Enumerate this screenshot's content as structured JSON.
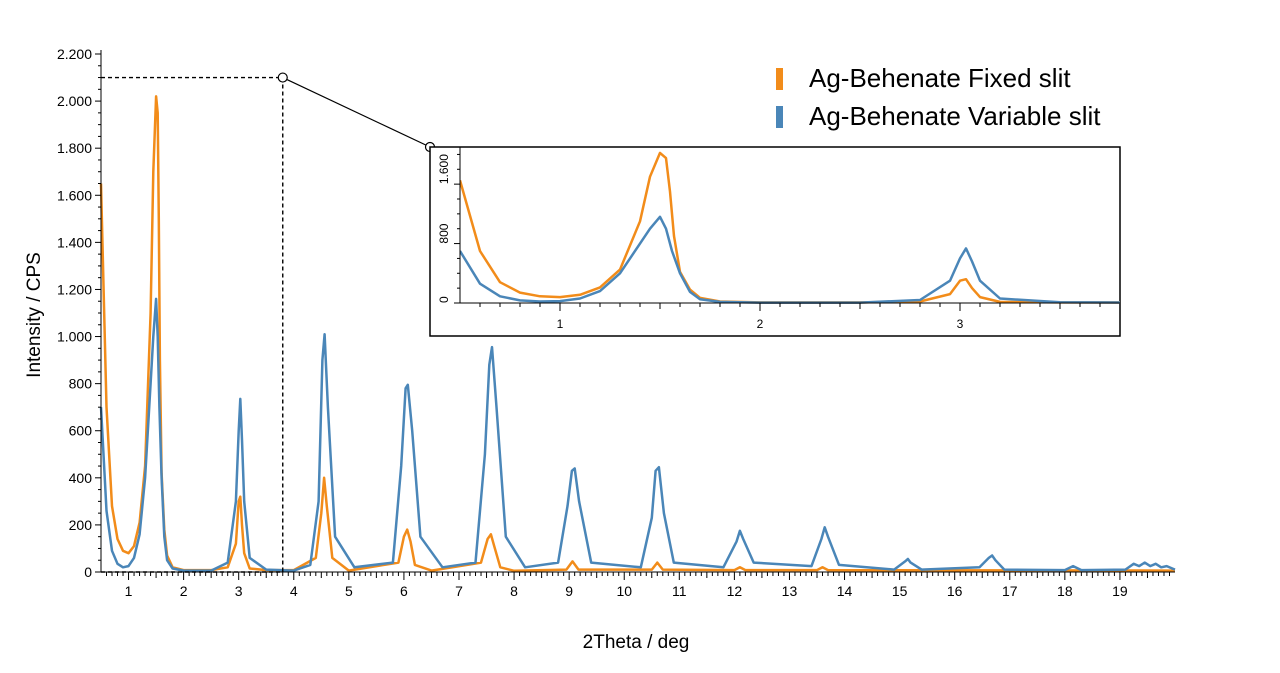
{
  "chart_data": {
    "type": "line",
    "xlabel": "2Theta / deg",
    "ylabel": "Intensity / CPS",
    "xlim": [
      0.5,
      20
    ],
    "ylim": [
      0,
      2200
    ],
    "xticks": [
      1,
      2,
      3,
      4,
      5,
      6,
      7,
      8,
      9,
      10,
      11,
      12,
      13,
      14,
      15,
      16,
      17,
      18,
      19
    ],
    "yticks": [
      0,
      200,
      400,
      600,
      800,
      1000,
      1200,
      1400,
      1600,
      1800,
      2000,
      2200
    ],
    "ytick_labels": [
      "0",
      "200",
      "400",
      "600",
      "800",
      "1.000",
      "1.200",
      "1.400",
      "1.600",
      "1.800",
      "2.000",
      "2.200"
    ],
    "grid": false,
    "legend_position": "top-right",
    "series": [
      {
        "name": "Ag-Behenate Fixed slit",
        "color": "#F28C1A",
        "x": [
          0.5,
          0.6,
          0.7,
          0.8,
          0.9,
          1.0,
          1.1,
          1.2,
          1.3,
          1.4,
          1.45,
          1.5,
          1.53,
          1.55,
          1.57,
          1.6,
          1.65,
          1.7,
          1.8,
          2.0,
          2.5,
          2.8,
          2.95,
          3.0,
          3.03,
          3.06,
          3.1,
          3.2,
          3.5,
          4.0,
          4.4,
          4.5,
          4.55,
          4.6,
          4.7,
          5.0,
          5.9,
          6.0,
          6.06,
          6.12,
          6.2,
          6.5,
          7.4,
          7.52,
          7.58,
          7.64,
          7.75,
          8.0,
          8.95,
          9.06,
          9.17,
          10.5,
          10.6,
          10.7,
          12.0,
          12.1,
          12.2,
          13.5,
          13.6,
          13.7,
          20.0
        ],
        "y": [
          1650,
          700,
          280,
          140,
          90,
          80,
          110,
          210,
          450,
          1100,
          1700,
          2020,
          1950,
          1500,
          900,
          420,
          180,
          70,
          20,
          8,
          8,
          20,
          120,
          300,
          320,
          200,
          80,
          15,
          8,
          8,
          60,
          250,
          400,
          280,
          60,
          6,
          40,
          150,
          180,
          130,
          30,
          6,
          40,
          140,
          160,
          110,
          20,
          5,
          10,
          45,
          10,
          10,
          40,
          10,
          8,
          20,
          8,
          8,
          20,
          8,
          6
        ]
      },
      {
        "name": "Ag-Behenate Variable slit",
        "color": "#4A86B8",
        "x": [
          0.5,
          0.6,
          0.7,
          0.8,
          0.9,
          1.0,
          1.1,
          1.2,
          1.3,
          1.4,
          1.45,
          1.5,
          1.53,
          1.56,
          1.6,
          1.65,
          1.7,
          1.8,
          2.0,
          2.5,
          2.8,
          2.95,
          3.0,
          3.03,
          3.06,
          3.1,
          3.2,
          3.5,
          4.0,
          4.3,
          4.45,
          4.52,
          4.56,
          4.62,
          4.75,
          5.1,
          5.8,
          5.95,
          6.03,
          6.07,
          6.15,
          6.3,
          6.7,
          7.3,
          7.47,
          7.55,
          7.6,
          7.68,
          7.85,
          8.2,
          8.8,
          8.97,
          9.05,
          9.1,
          9.18,
          9.4,
          10.3,
          10.5,
          10.57,
          10.63,
          10.72,
          10.9,
          11.8,
          12.04,
          12.1,
          12.16,
          12.35,
          13.4,
          13.58,
          13.64,
          13.7,
          13.9,
          14.9,
          15.1,
          15.15,
          15.2,
          15.4,
          16.45,
          16.62,
          16.68,
          16.74,
          16.9,
          18.0,
          18.15,
          18.3,
          19.1,
          19.25,
          19.35,
          19.45,
          19.55,
          19.65,
          19.75,
          19.85,
          20.0
        ],
        "y": [
          700,
          260,
          90,
          35,
          20,
          25,
          60,
          160,
          400,
          800,
          1000,
          1160,
          1000,
          700,
          400,
          150,
          50,
          15,
          6,
          6,
          40,
          300,
          600,
          735,
          560,
          300,
          60,
          10,
          6,
          30,
          300,
          900,
          1010,
          700,
          150,
          20,
          40,
          450,
          780,
          795,
          600,
          150,
          20,
          40,
          500,
          880,
          955,
          700,
          150,
          20,
          40,
          280,
          430,
          440,
          300,
          40,
          20,
          230,
          430,
          445,
          250,
          40,
          20,
          130,
          175,
          140,
          40,
          25,
          140,
          190,
          150,
          30,
          10,
          45,
          55,
          40,
          10,
          20,
          60,
          70,
          50,
          10,
          8,
          25,
          8,
          10,
          35,
          25,
          40,
          25,
          35,
          20,
          25,
          10
        ]
      }
    ],
    "inset": {
      "xlim": [
        0.5,
        3.8
      ],
      "ylim": [
        0,
        2100
      ],
      "xticks": [
        1,
        2,
        3
      ],
      "yticks": [
        0,
        800,
        1600
      ],
      "ytick_labels": [
        "0",
        "800",
        "1.600"
      ]
    }
  }
}
